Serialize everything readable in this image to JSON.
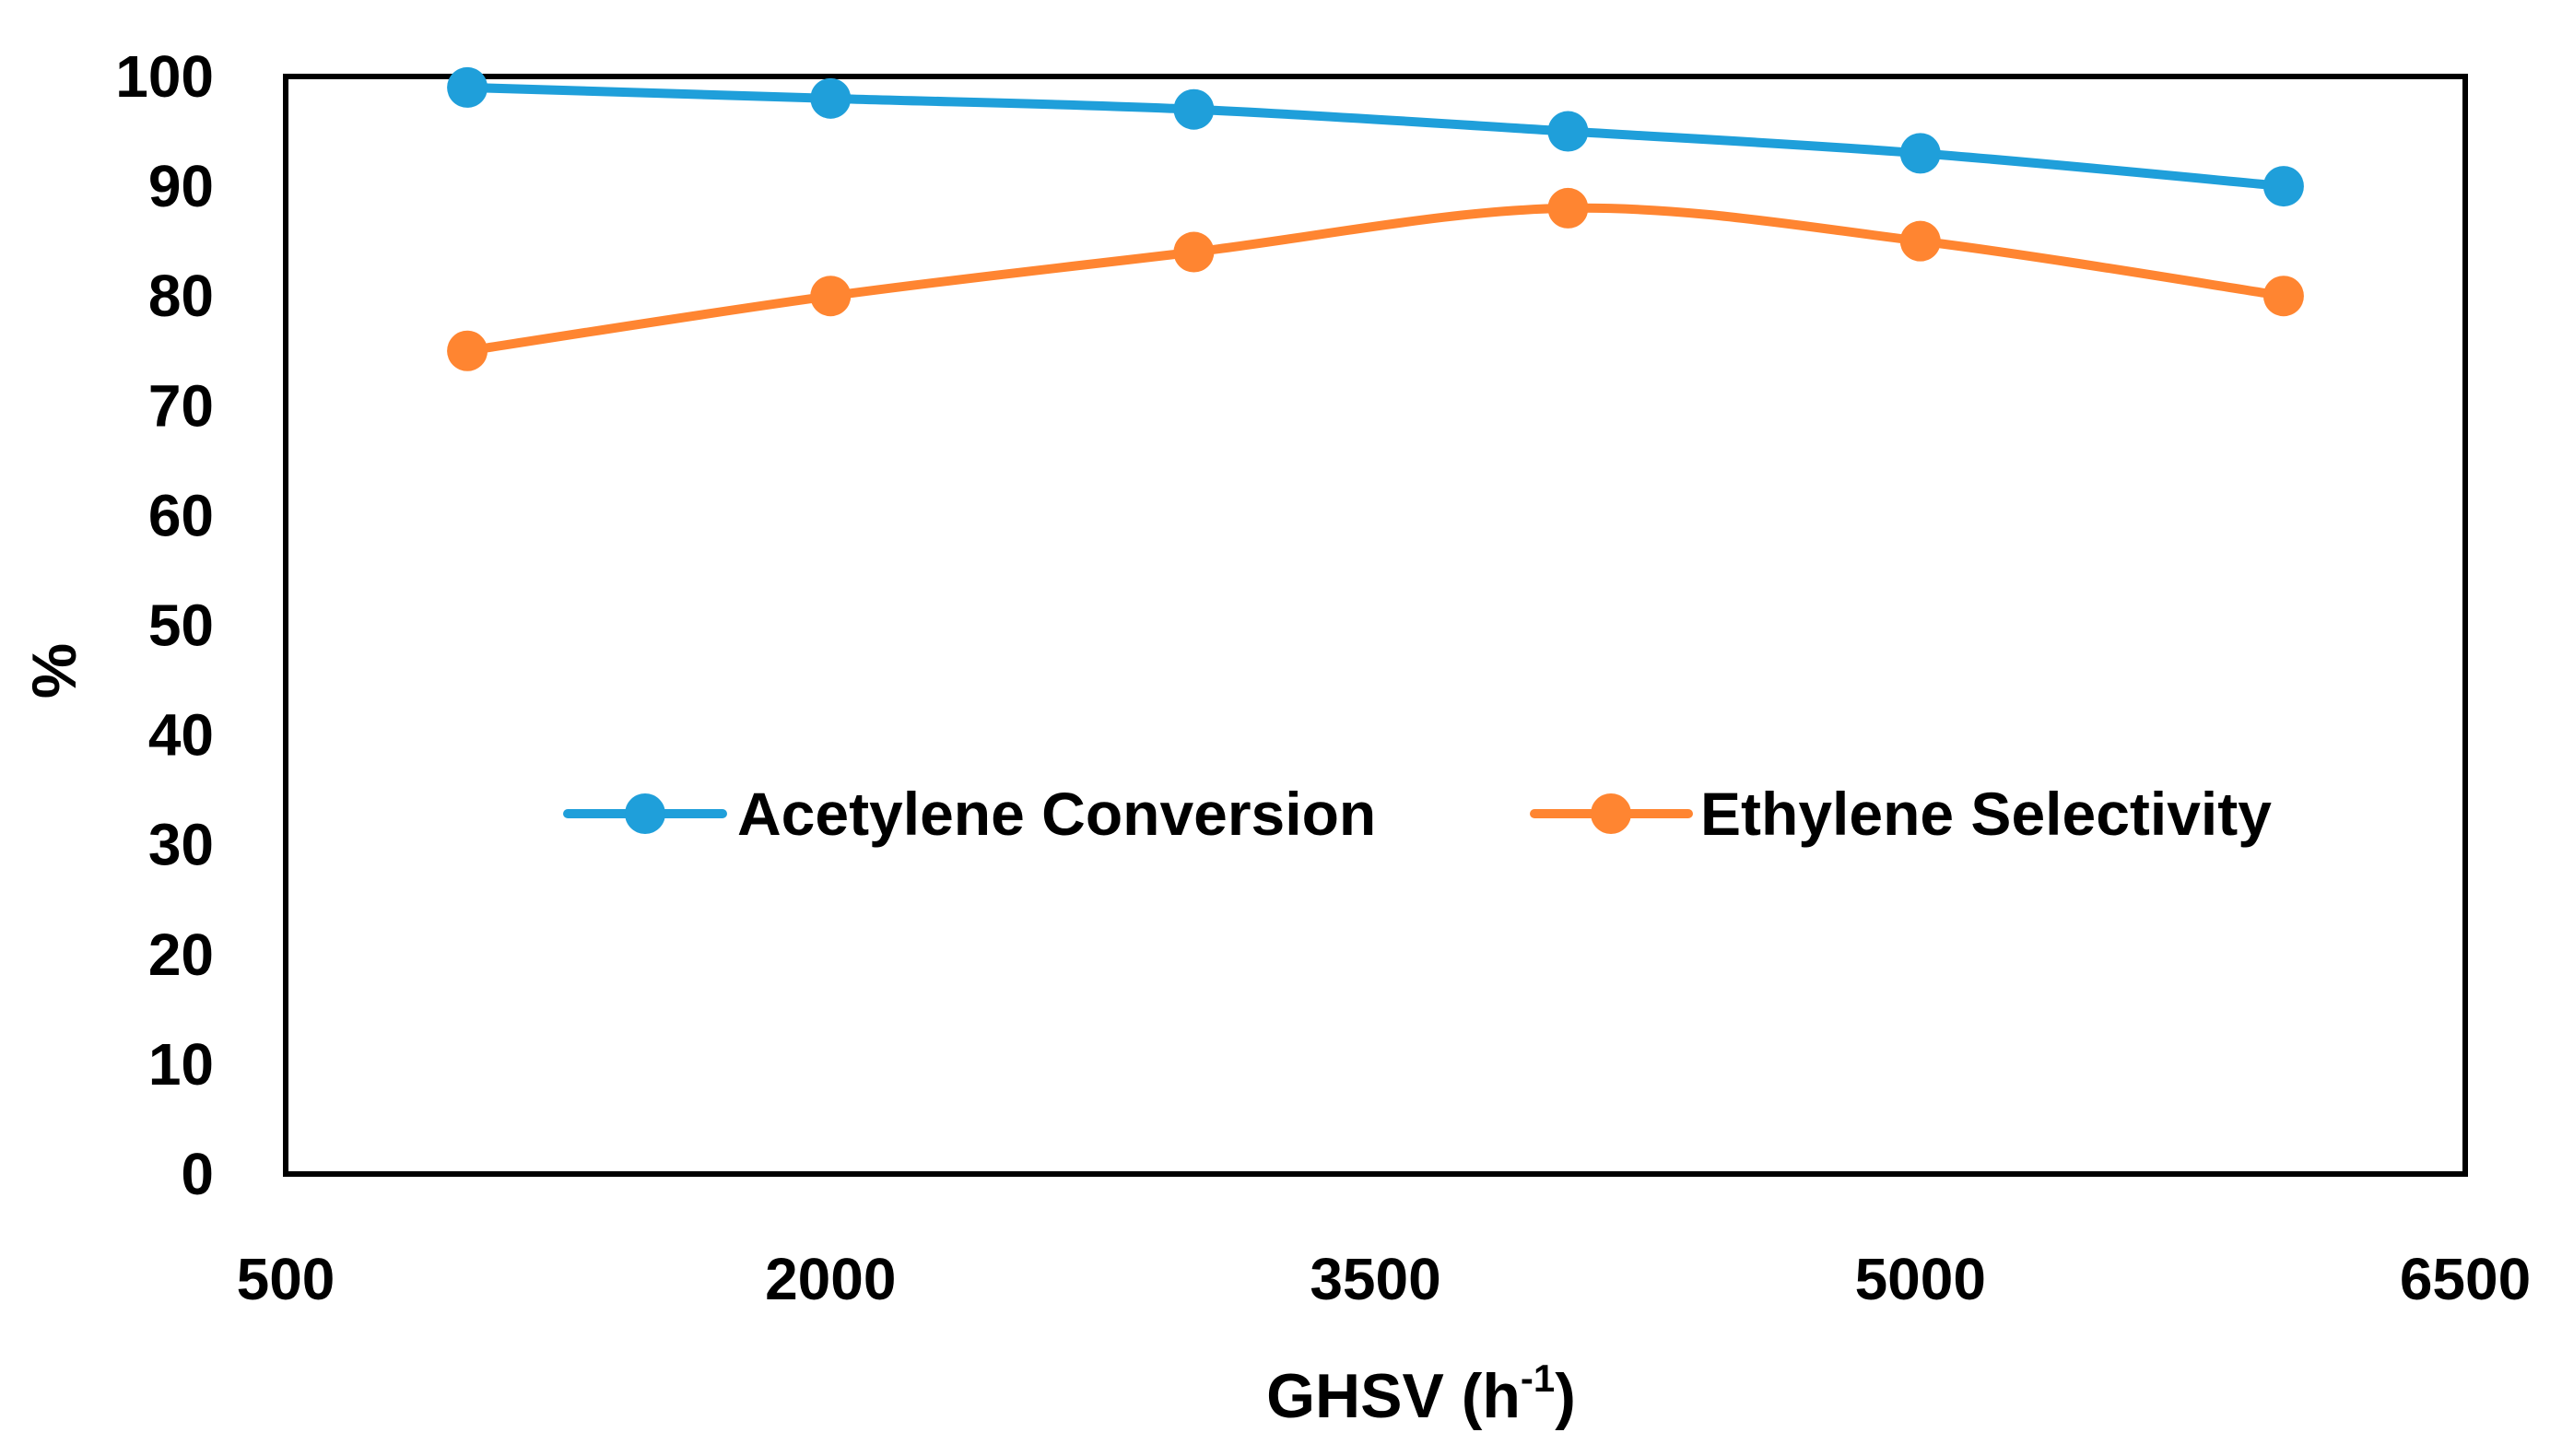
{
  "chart_data": {
    "type": "line",
    "title": "",
    "xlabel": "GHSV (h",
    "xlabel_superscript": "-1",
    "xlabel_close": ")",
    "ylabel": "%",
    "xlim": [
      500,
      6500
    ],
    "ylim": [
      0,
      100
    ],
    "x_ticks": [
      500,
      2000,
      3500,
      5000,
      6500
    ],
    "y_ticks": [
      0,
      10,
      20,
      30,
      40,
      50,
      60,
      70,
      80,
      90,
      100
    ],
    "x": [
      1000,
      2000,
      3000,
      4030,
      5000,
      6000
    ],
    "series": [
      {
        "name": "Acetylene Conversion",
        "color": "#1F9FDA",
        "values": [
          99,
          98,
          97,
          95,
          93,
          90
        ]
      },
      {
        "name": "Ethylene Selectivity",
        "color": "#FF8531",
        "values": [
          75,
          80,
          84,
          88,
          85,
          80
        ]
      }
    ],
    "legend_position": "center-right",
    "grid": false
  }
}
